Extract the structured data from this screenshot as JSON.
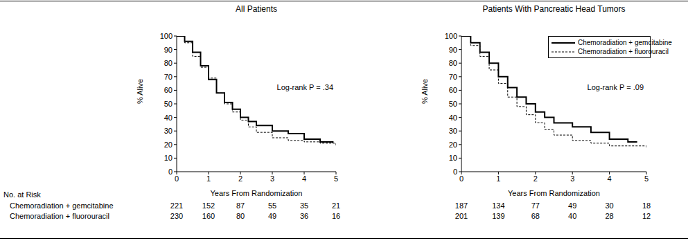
{
  "chart_data": [
    {
      "type": "step",
      "title": "All Patients",
      "x_label": "Years From Randomization",
      "y_label": "% Alive",
      "xlim": [
        0,
        5
      ],
      "ylim": [
        0,
        100
      ],
      "xticks": [
        0,
        1,
        2,
        3,
        4,
        5
      ],
      "yticks": [
        0,
        10,
        20,
        30,
        40,
        50,
        60,
        70,
        80,
        90,
        100
      ],
      "grid": false,
      "annotations": [
        "Log-rank P = .34"
      ],
      "series": [
        {
          "name": "Chemoradiation + gemcitabine",
          "color": "#000000",
          "line_style": "solid",
          "x": [
            0,
            0.25,
            0.5,
            0.75,
            1,
            1.25,
            1.5,
            1.75,
            2,
            2.25,
            2.5,
            3,
            3.5,
            4,
            4.5,
            4.9
          ],
          "values": [
            100,
            96,
            88,
            78,
            68,
            58,
            51,
            46,
            40,
            37,
            34,
            30,
            28,
            24,
            22,
            21
          ]
        },
        {
          "name": "Chemoradiation + fluorouracil",
          "color": "#000000",
          "line_style": "dashed",
          "x": [
            0,
            0.25,
            0.5,
            0.75,
            1,
            1.25,
            1.5,
            1.75,
            2,
            2.25,
            2.5,
            3,
            3.5,
            4,
            4.5,
            5
          ],
          "values": [
            100,
            95,
            85,
            77,
            69,
            58,
            50,
            44,
            38,
            33,
            29,
            25,
            23,
            22,
            21,
            19
          ]
        }
      ],
      "at_risk_title": "No. at Risk",
      "at_risk": {
        "x": [
          0,
          1,
          2,
          3,
          4,
          5
        ],
        "values": [
          [
            221,
            152,
            87,
            55,
            35,
            21
          ],
          [
            230,
            160,
            80,
            49,
            36,
            16
          ]
        ]
      }
    },
    {
      "type": "step",
      "title": "Patients With Pancreatic Head Tumors",
      "x_label": "Years From Randomization",
      "y_label": "% Alive",
      "xlim": [
        0,
        5
      ],
      "ylim": [
        0,
        100
      ],
      "xticks": [
        0,
        1,
        2,
        3,
        4,
        5
      ],
      "yticks": [
        0,
        10,
        20,
        30,
        40,
        50,
        60,
        70,
        80,
        90,
        100
      ],
      "grid": false,
      "legend": "upper right",
      "annotations": [
        "Log-rank P = .09"
      ],
      "series": [
        {
          "name": "Chemoradiation + gemcitabine",
          "color": "#000000",
          "line_style": "solid",
          "x": [
            0,
            0.25,
            0.5,
            0.75,
            1,
            1.25,
            1.5,
            1.75,
            2,
            2.25,
            2.5,
            3,
            3.5,
            4,
            4.5,
            4.75
          ],
          "values": [
            100,
            95,
            88,
            80,
            70,
            62,
            55,
            50,
            44,
            40,
            36,
            33,
            29,
            24,
            22,
            22
          ]
        },
        {
          "name": "Chemoradiation + fluorouracil",
          "color": "#000000",
          "line_style": "dashed",
          "x": [
            0,
            0.25,
            0.5,
            0.75,
            1,
            1.25,
            1.5,
            1.75,
            2,
            2.25,
            2.5,
            3,
            3.5,
            4,
            4.5,
            5
          ],
          "values": [
            100,
            93,
            85,
            75,
            65,
            55,
            48,
            42,
            36,
            31,
            27,
            23,
            21,
            19,
            19,
            17
          ]
        }
      ],
      "at_risk": {
        "x": [
          0,
          1,
          2,
          3,
          4,
          5
        ],
        "values": [
          [
            187,
            134,
            77,
            49,
            30,
            18
          ],
          [
            201,
            139,
            68,
            40,
            28,
            12
          ]
        ]
      }
    }
  ]
}
